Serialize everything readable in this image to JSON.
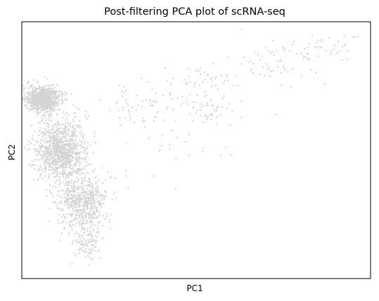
{
  "chart_data": {
    "type": "scatter",
    "title": "Post-filtering PCA plot of scRNA-seq",
    "xlabel": "PC1",
    "ylabel": "PC2",
    "xticks": [],
    "yticks": [],
    "xlim": [
      0,
      1
    ],
    "ylim": [
      0,
      1
    ],
    "grid": false,
    "legend": "none",
    "point_color": "#d3d3d3",
    "axis_color": "#000000",
    "clusters": [
      {
        "name": "main-band-top",
        "center": [
          0.06,
          0.7
        ],
        "spread": [
          0.025,
          0.025
        ],
        "n": 900
      },
      {
        "name": "main-band-mid",
        "center": [
          0.11,
          0.5
        ],
        "spread": [
          0.035,
          0.06
        ],
        "n": 1100
      },
      {
        "name": "main-band-low",
        "center": [
          0.17,
          0.3
        ],
        "spread": [
          0.035,
          0.05
        ],
        "n": 600
      },
      {
        "name": "main-band-tail",
        "center": [
          0.19,
          0.15
        ],
        "spread": [
          0.02,
          0.04
        ],
        "n": 120
      },
      {
        "name": "arm-segment-1",
        "center": [
          0.35,
          0.67
        ],
        "spread": [
          0.06,
          0.05
        ],
        "n": 70
      },
      {
        "name": "arm-segment-2",
        "center": [
          0.52,
          0.76
        ],
        "spread": [
          0.05,
          0.04
        ],
        "n": 50
      },
      {
        "name": "arm-segment-3",
        "center": [
          0.55,
          0.66
        ],
        "spread": [
          0.03,
          0.03
        ],
        "n": 45
      },
      {
        "name": "arm-segment-4",
        "center": [
          0.73,
          0.84
        ],
        "spread": [
          0.06,
          0.04
        ],
        "n": 55
      },
      {
        "name": "arm-segment-5",
        "center": [
          0.87,
          0.91
        ],
        "spread": [
          0.05,
          0.03
        ],
        "n": 35
      },
      {
        "name": "sparse-scatter",
        "center": [
          0.35,
          0.55
        ],
        "spread": [
          0.15,
          0.1
        ],
        "n": 30
      }
    ],
    "outliers": [
      [
        0.63,
        0.97
      ],
      [
        0.95,
        0.94
      ],
      [
        0.86,
        0.93
      ],
      [
        0.7,
        0.9
      ],
      [
        0.3,
        0.4
      ],
      [
        0.6,
        0.48
      ],
      [
        0.48,
        0.48
      ],
      [
        0.25,
        0.22
      ]
    ]
  }
}
